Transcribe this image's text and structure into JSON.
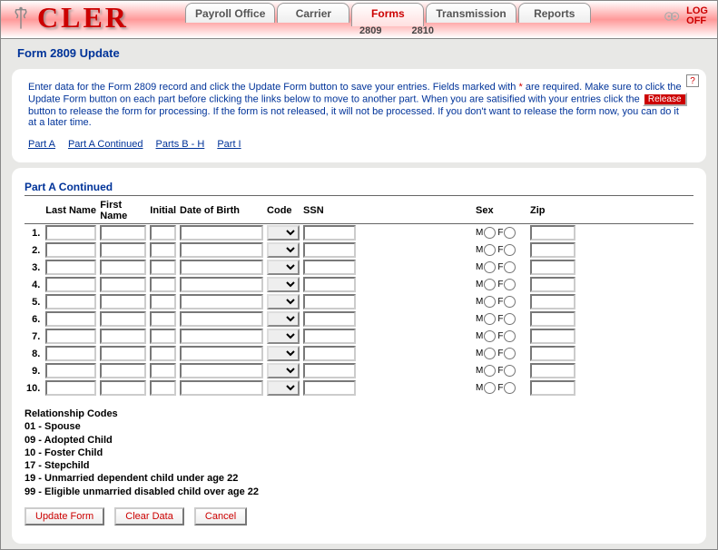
{
  "header": {
    "logo_text": "CLER",
    "tabs": [
      {
        "label": "Payroll Office",
        "active": false
      },
      {
        "label": "Carrier",
        "active": false
      },
      {
        "label": "Forms",
        "active": true
      },
      {
        "label": "Transmission",
        "active": false
      },
      {
        "label": "Reports",
        "active": false
      }
    ],
    "subtabs": [
      "2809",
      "2810"
    ],
    "logoff_line1": "LOG",
    "logoff_line2": "OFF"
  },
  "page_title": "Form 2809 Update",
  "help_symbol": "?",
  "instructions": {
    "pre": "Enter data for the Form 2809 record and click the Update Form button to save your entries.  Fields marked with ",
    "star": "*",
    "mid": " are required.  Make sure to click the Update Form button on each part before clicking the links below to move to another part.  When you are satisified with your entries click the ",
    "release_label": "Release",
    "post": " button to release the form for processing.  If the form is not released, it will not be processed.  If you don't want to release the form now, you can do it at a later time."
  },
  "part_links": [
    {
      "label": "Part A"
    },
    {
      "label": "Part A Continued"
    },
    {
      "label": "Parts B - H"
    },
    {
      "label": "Part I"
    }
  ],
  "section_title": "Part A Continued",
  "columns": [
    {
      "label": "Last Name"
    },
    {
      "label": "First Name"
    },
    {
      "label": "Initial"
    },
    {
      "label": "Date of Birth"
    },
    {
      "label": "Code"
    },
    {
      "label": "SSN"
    },
    {
      "label": "Sex"
    },
    {
      "label": "Zip"
    }
  ],
  "sex_labels": {
    "m": "M",
    "f": "F"
  },
  "row_count": 10,
  "codes_heading": "Relationship Codes",
  "codes": [
    "01 - Spouse",
    "09 - Adopted Child",
    "10 - Foster Child",
    "17 - Stepchild",
    "19 - Unmarried dependent child under age 22",
    "99 - Eligible unmarried disabled child over age 22"
  ],
  "buttons": {
    "update": "Update Form",
    "clear": "Clear Data",
    "cancel": "Cancel"
  },
  "colors": {
    "link_color": "#003399",
    "accent_red": "#cc0000",
    "bg_gray": "#e8e8e6"
  }
}
